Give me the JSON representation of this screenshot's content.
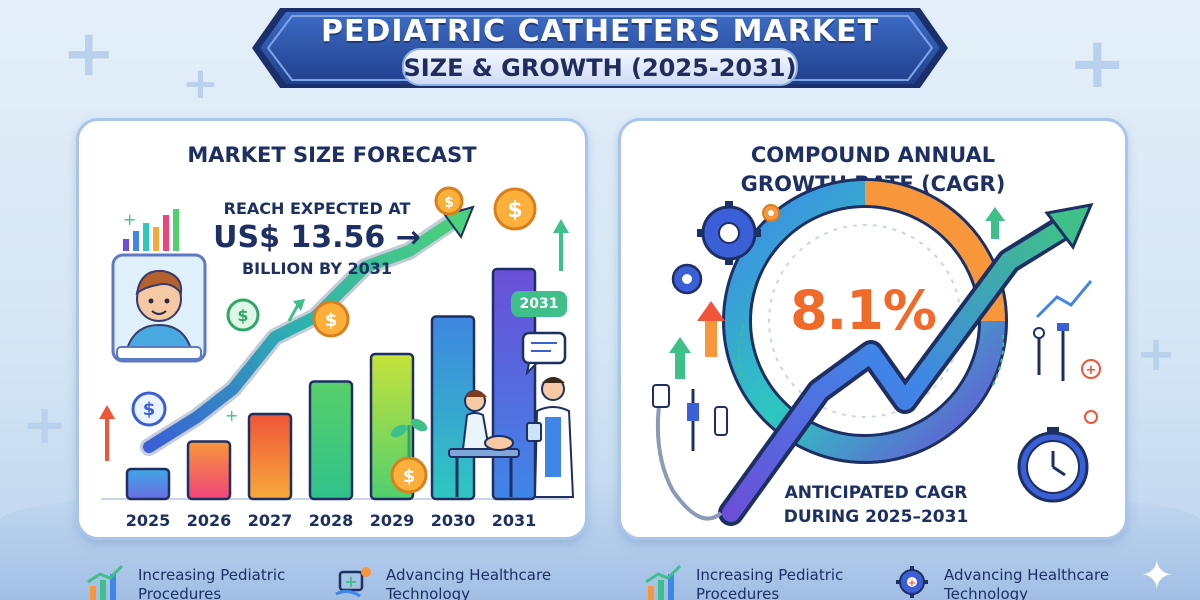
{
  "title": {
    "line1": "PEDIATRIC CATHETERS MARKET",
    "line2": "SIZE & GROWTH (2025-2031)"
  },
  "left_panel": {
    "heading": "MARKET SIZE FORECAST",
    "reach_line1": "REACH EXPECTED AT",
    "reach_value": "US$ 13.56 →",
    "reach_line3": "BILLION BY 2031",
    "badge": "2031",
    "years": [
      "2025",
      "2026",
      "2027",
      "2028",
      "2029",
      "2030",
      "2031"
    ],
    "bar_levels": [
      0.12,
      0.23,
      0.34,
      0.47,
      0.58,
      0.73,
      0.92
    ],
    "bar_colors": [
      [
        "#6a6ee0",
        "#3fa6e6"
      ],
      [
        "#f0457a",
        "#f7963a"
      ],
      [
        "#f7a93a",
        "#f0553a"
      ],
      [
        "#2fc28a",
        "#58d06a"
      ],
      [
        "#4fcf6e",
        "#c6e23a"
      ],
      [
        "#2ec7c0",
        "#3f86e0"
      ],
      [
        "#3f86e6",
        "#6b4fd8"
      ]
    ],
    "icons": [
      "child-patient-icon",
      "dollar-coin-icon",
      "doctor-icon",
      "nurse-icon",
      "chat-bubble-icon",
      "plant-icon"
    ]
  },
  "right_panel": {
    "heading_line1": "COMPOUND ANNUAL",
    "heading_line2": "GROWTH RATE (CAGR)",
    "cagr_value": "8.1%",
    "caption_line1": "ANTICIPATED CAGR",
    "caption_line2": "DURING 2025–2031",
    "icons": [
      "gear-icon",
      "clock-icon",
      "catheter-icon",
      "medical-tools-icon",
      "up-arrow-icon"
    ]
  },
  "footer": [
    {
      "icon": "growth-chart-icon",
      "line1": "Increasing Pediatric",
      "line2": "Procedures"
    },
    {
      "icon": "healthcare-tech-icon",
      "line1": "Advancing Healthcare",
      "line2": "Technology"
    },
    {
      "icon": "growth-chart-icon",
      "line1": "Increasing Pediatric",
      "line2": "Procedures"
    },
    {
      "icon": "gear-tech-icon",
      "line1": "Advancing Healthcare",
      "line2": "Technology"
    }
  ],
  "colors": {
    "navy": "#1d2f63",
    "accent_orange": "#f06a2a",
    "banner_blue": "#2a4ea0",
    "arrow_green": "#34c07a"
  }
}
